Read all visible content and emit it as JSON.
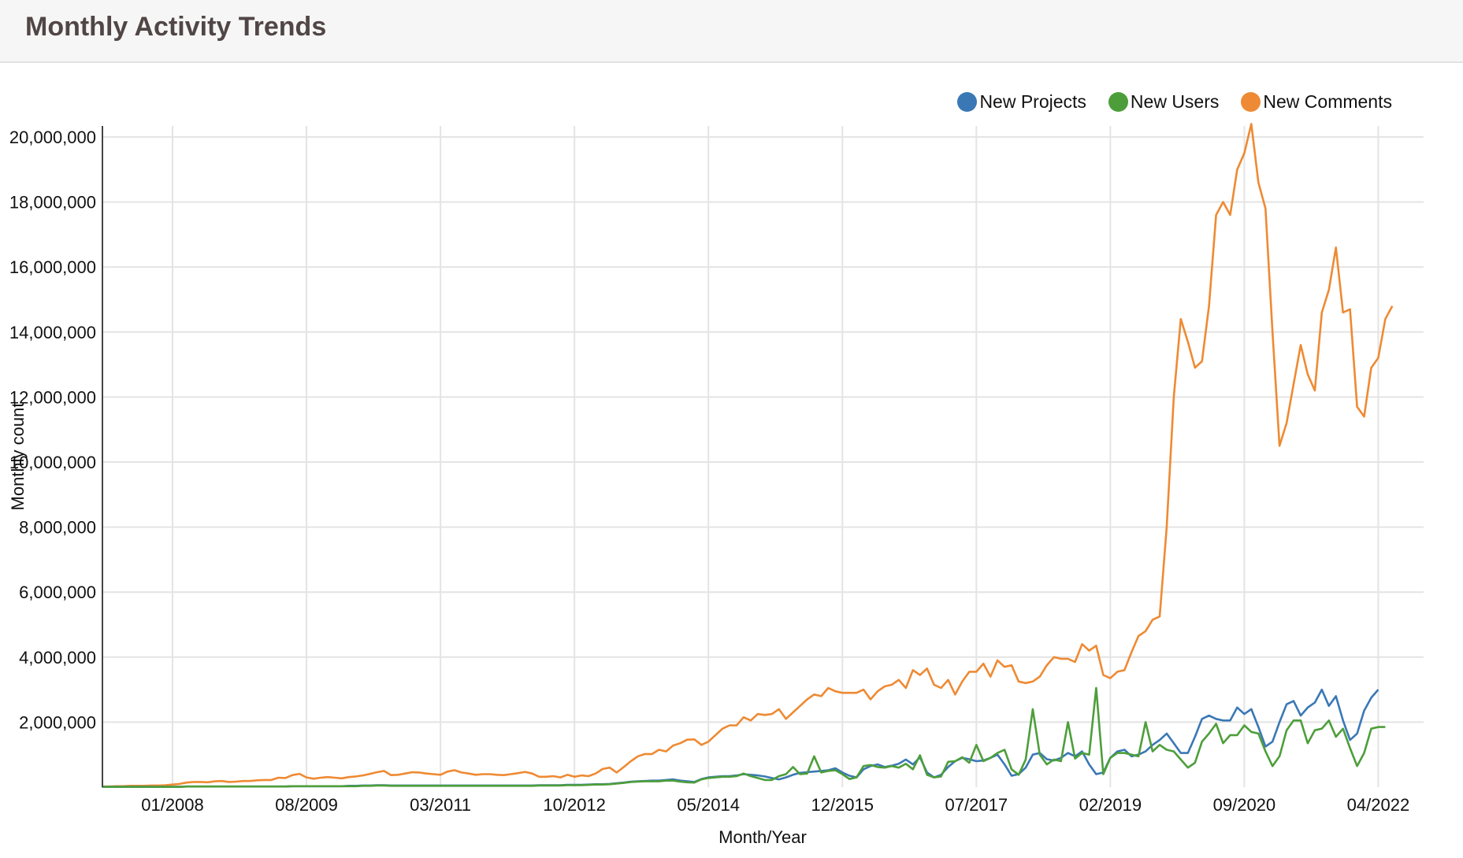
{
  "header": {
    "title": "Monthly Activity Trends"
  },
  "legend": [
    {
      "label": "New Projects",
      "color": "#3a78b5"
    },
    {
      "label": "New Users",
      "color": "#4d9e3a"
    },
    {
      "label": "New Comments",
      "color": "#ee8a33"
    }
  ],
  "chart_data": {
    "type": "line",
    "title": "Monthly Activity Trends",
    "xlabel": "Month/Year",
    "ylabel": "Monthly count",
    "ylim": [
      0,
      20400000
    ],
    "grid": true,
    "legend_position": "top-right",
    "x_start": "03/2007",
    "x_end": "10/2022",
    "x_ticks": [
      "01/2008",
      "08/2009",
      "03/2011",
      "10/2012",
      "05/2014",
      "12/2015",
      "07/2017",
      "02/2019",
      "09/2020",
      "04/2022"
    ],
    "y_ticks": [
      "2,000,000",
      "4,000,000",
      "6,000,000",
      "8,000,000",
      "10,000,000",
      "12,000,000",
      "14,000,000",
      "16,000,000",
      "18,000,000",
      "20,000,000"
    ],
    "y_tick_values": [
      2000000,
      4000000,
      6000000,
      8000000,
      10000000,
      12000000,
      14000000,
      16000000,
      18000000,
      20000000
    ],
    "unit_note": "series values in millions, one point per month starting 03/2007",
    "series": [
      {
        "name": "New Projects",
        "color": "#3a78b5",
        "values": [
          0.01,
          0.01,
          0.01,
          0.01,
          0.01,
          0.01,
          0.01,
          0.01,
          0.01,
          0.01,
          0.01,
          0.01,
          0.02,
          0.02,
          0.02,
          0.02,
          0.02,
          0.02,
          0.02,
          0.02,
          0.02,
          0.02,
          0.02,
          0.02,
          0.02,
          0.02,
          0.02,
          0.03,
          0.03,
          0.03,
          0.03,
          0.03,
          0.03,
          0.03,
          0.03,
          0.04,
          0.04,
          0.05,
          0.05,
          0.06,
          0.06,
          0.05,
          0.05,
          0.05,
          0.05,
          0.05,
          0.05,
          0.05,
          0.05,
          0.05,
          0.05,
          0.05,
          0.05,
          0.05,
          0.05,
          0.05,
          0.05,
          0.05,
          0.05,
          0.05,
          0.05,
          0.05,
          0.06,
          0.06,
          0.06,
          0.06,
          0.07,
          0.07,
          0.07,
          0.08,
          0.09,
          0.09,
          0.1,
          0.12,
          0.14,
          0.17,
          0.18,
          0.19,
          0.2,
          0.2,
          0.22,
          0.24,
          0.2,
          0.18,
          0.16,
          0.25,
          0.3,
          0.32,
          0.34,
          0.34,
          0.36,
          0.4,
          0.38,
          0.36,
          0.33,
          0.28,
          0.24,
          0.3,
          0.38,
          0.44,
          0.46,
          0.48,
          0.5,
          0.52,
          0.58,
          0.45,
          0.35,
          0.3,
          0.55,
          0.65,
          0.7,
          0.62,
          0.66,
          0.72,
          0.85,
          0.7,
          0.92,
          0.45,
          0.3,
          0.38,
          0.62,
          0.8,
          0.9,
          0.86,
          0.8,
          0.82,
          0.9,
          1.0,
          0.7,
          0.35,
          0.4,
          0.6,
          1.0,
          1.05,
          0.86,
          0.82,
          0.9,
          1.05,
          0.95,
          1.1,
          0.7,
          0.4,
          0.45,
          0.9,
          1.1,
          1.15,
          0.95,
          1.0,
          1.1,
          1.3,
          1.45,
          1.65,
          1.35,
          1.05,
          1.05,
          1.55,
          2.1,
          2.2,
          2.1,
          2.05,
          2.05,
          2.45,
          2.25,
          2.4,
          1.85,
          1.25,
          1.4,
          2.0,
          2.55,
          2.65,
          2.2,
          2.45,
          2.6,
          3.0,
          2.5,
          2.8,
          2.05,
          1.45,
          1.65,
          2.35,
          2.75,
          3.0
        ]
      },
      {
        "name": "New Users",
        "color": "#4d9e3a",
        "values": [
          0.01,
          0.01,
          0.01,
          0.01,
          0.01,
          0.01,
          0.01,
          0.01,
          0.01,
          0.01,
          0.01,
          0.01,
          0.02,
          0.02,
          0.02,
          0.02,
          0.02,
          0.02,
          0.02,
          0.02,
          0.02,
          0.02,
          0.02,
          0.02,
          0.02,
          0.02,
          0.02,
          0.03,
          0.03,
          0.03,
          0.03,
          0.03,
          0.03,
          0.03,
          0.03,
          0.03,
          0.03,
          0.04,
          0.04,
          0.05,
          0.05,
          0.04,
          0.04,
          0.04,
          0.04,
          0.04,
          0.04,
          0.04,
          0.04,
          0.04,
          0.04,
          0.04,
          0.04,
          0.04,
          0.04,
          0.04,
          0.04,
          0.04,
          0.04,
          0.04,
          0.04,
          0.04,
          0.05,
          0.05,
          0.05,
          0.05,
          0.06,
          0.06,
          0.06,
          0.07,
          0.08,
          0.08,
          0.09,
          0.11,
          0.13,
          0.16,
          0.17,
          0.18,
          0.18,
          0.18,
          0.2,
          0.2,
          0.17,
          0.15,
          0.14,
          0.24,
          0.28,
          0.3,
          0.32,
          0.32,
          0.34,
          0.42,
          0.34,
          0.28,
          0.22,
          0.22,
          0.34,
          0.4,
          0.62,
          0.4,
          0.42,
          0.95,
          0.45,
          0.5,
          0.52,
          0.4,
          0.25,
          0.3,
          0.65,
          0.68,
          0.62,
          0.6,
          0.65,
          0.6,
          0.72,
          0.55,
          0.98,
          0.38,
          0.3,
          0.33,
          0.78,
          0.8,
          0.92,
          0.75,
          1.3,
          0.8,
          0.9,
          1.05,
          1.15,
          0.55,
          0.38,
          0.85,
          2.4,
          1.0,
          0.7,
          0.85,
          0.8,
          2.0,
          0.88,
          1.05,
          1.0,
          3.05,
          0.4,
          0.9,
          1.05,
          1.05,
          1.0,
          0.95,
          2.0,
          1.1,
          1.3,
          1.15,
          1.1,
          0.85,
          0.6,
          0.75,
          1.4,
          1.65,
          1.95,
          1.35,
          1.6,
          1.6,
          1.9,
          1.7,
          1.65,
          1.1,
          0.65,
          0.95,
          1.75,
          2.05,
          2.05,
          1.35,
          1.75,
          1.8,
          2.05,
          1.55,
          1.8,
          1.2,
          0.65,
          1.05,
          1.8,
          1.85,
          1.85
        ]
      },
      {
        "name": "New Comments",
        "color": "#ee8a33",
        "values": [
          0.02,
          0.02,
          0.03,
          0.03,
          0.04,
          0.04,
          0.04,
          0.05,
          0.05,
          0.06,
          0.08,
          0.1,
          0.14,
          0.16,
          0.16,
          0.15,
          0.18,
          0.19,
          0.16,
          0.17,
          0.19,
          0.19,
          0.21,
          0.22,
          0.22,
          0.29,
          0.28,
          0.37,
          0.41,
          0.3,
          0.26,
          0.29,
          0.31,
          0.29,
          0.27,
          0.31,
          0.33,
          0.36,
          0.41,
          0.46,
          0.5,
          0.37,
          0.38,
          0.42,
          0.46,
          0.45,
          0.42,
          0.4,
          0.38,
          0.48,
          0.52,
          0.45,
          0.42,
          0.38,
          0.4,
          0.4,
          0.38,
          0.37,
          0.4,
          0.43,
          0.47,
          0.42,
          0.32,
          0.32,
          0.34,
          0.3,
          0.38,
          0.32,
          0.36,
          0.34,
          0.42,
          0.56,
          0.6,
          0.45,
          0.62,
          0.8,
          0.95,
          1.02,
          1.02,
          1.15,
          1.1,
          1.28,
          1.35,
          1.46,
          1.47,
          1.3,
          1.4,
          1.6,
          1.8,
          1.9,
          1.9,
          2.15,
          2.05,
          2.25,
          2.22,
          2.25,
          2.4,
          2.1,
          2.3,
          2.5,
          2.7,
          2.85,
          2.8,
          3.05,
          2.95,
          2.9,
          2.9,
          2.9,
          3.0,
          2.7,
          2.95,
          3.1,
          3.15,
          3.3,
          3.05,
          3.6,
          3.45,
          3.65,
          3.15,
          3.05,
          3.3,
          2.85,
          3.25,
          3.55,
          3.55,
          3.8,
          3.4,
          3.9,
          3.7,
          3.75,
          3.25,
          3.2,
          3.25,
          3.4,
          3.75,
          4.0,
          3.95,
          3.95,
          3.85,
          4.4,
          4.2,
          4.35,
          3.45,
          3.35,
          3.55,
          3.6,
          4.15,
          4.65,
          4.8,
          5.15,
          5.25,
          8.0,
          12.0,
          14.4,
          13.7,
          12.9,
          13.1,
          14.8,
          17.6,
          18.0,
          17.6,
          19.0,
          19.5,
          20.4,
          18.6,
          17.8,
          14.0,
          10.5,
          11.2,
          12.4,
          13.6,
          12.7,
          12.2,
          14.6,
          15.3,
          16.6,
          14.6,
          14.7,
          11.7,
          11.4,
          12.9,
          13.2,
          14.4,
          14.8
        ]
      }
    ]
  },
  "axes": {
    "x_title": "Month/Year",
    "y_title": "Monthly count",
    "x_ticks": [
      "01/2008",
      "08/2009",
      "03/2011",
      "10/2012",
      "05/2014",
      "12/2015",
      "07/2017",
      "02/2019",
      "09/2020",
      "04/2022"
    ],
    "y_ticks": [
      "2,000,000",
      "4,000,000",
      "6,000,000",
      "8,000,000",
      "10,000,000",
      "12,000,000",
      "14,000,000",
      "16,000,000",
      "18,000,000",
      "20,000,000"
    ]
  }
}
